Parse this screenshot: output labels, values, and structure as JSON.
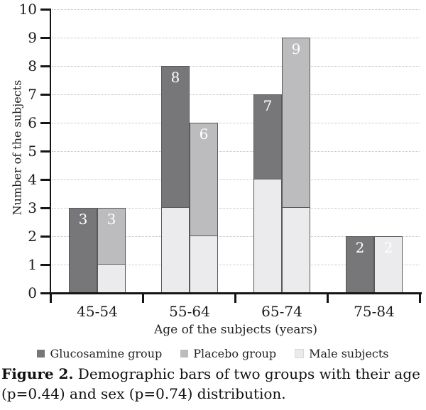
{
  "figure": {
    "caption_label": "Figure 2.",
    "caption_text": " Demographic bars of two groups with their age (p=0.44) and sex (p=0.74) distribution."
  },
  "chart_data": {
    "type": "bar",
    "variant": "grouped bars per age range; light lower segment of each bar shows male subjects within that group",
    "title": "",
    "xlabel": "Age of the subjects (years)",
    "ylabel": "Number of the subjects",
    "ylim": [
      0,
      10
    ],
    "yticks": [
      0,
      1,
      2,
      3,
      4,
      5,
      6,
      7,
      8,
      9,
      10
    ],
    "grid": "horizontal dotted",
    "categories": [
      "45-54",
      "55-64",
      "65-74",
      "75-84"
    ],
    "series": [
      {
        "name": "Glucosamine group",
        "color": "#777779",
        "values": [
          3,
          8,
          7,
          2
        ],
        "male_subjects": [
          0,
          3,
          4,
          0
        ]
      },
      {
        "name": "Placebo group",
        "color": "#bcbcbe",
        "values": [
          3,
          6,
          9,
          2
        ],
        "male_subjects": [
          1,
          2,
          3,
          2
        ]
      }
    ],
    "male_overlay": {
      "name": "Male subjects",
      "color": "#ebebed"
    },
    "bar_labels": [
      [
        3,
        8,
        7,
        2
      ],
      [
        3,
        6,
        9,
        2
      ]
    ],
    "bar_label_color": "#ffffff",
    "legend": [
      {
        "label": "Glucosamine group",
        "color": "#777779"
      },
      {
        "label": "Placebo group",
        "color": "#bcbcbe"
      },
      {
        "label": "Male subjects",
        "color": "#ebebed"
      }
    ],
    "legend_position": "bottom"
  },
  "colors": {
    "axis": "#151515",
    "grid_dotted": "#bfbfbf",
    "bar_border": "#58585c",
    "text": "#1c1c1c"
  }
}
